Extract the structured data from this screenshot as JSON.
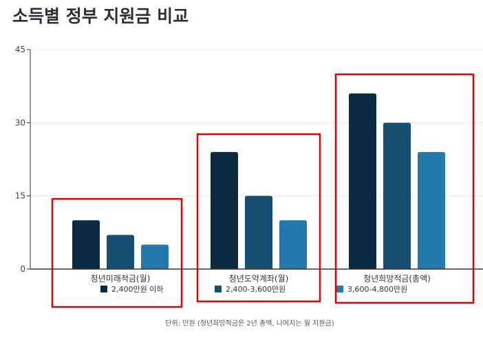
{
  "chart_data": {
    "type": "bar",
    "title": "소득별 정부 지원금 비교",
    "categories": [
      "청년미래적금(월)",
      "청년도약계좌(월)",
      "청년희망적금(총액)"
    ],
    "series": [
      {
        "name": "2,400만원 이하",
        "color": "#0e2a40",
        "values": [
          10,
          24,
          36
        ]
      },
      {
        "name": "2,400-3,600만원",
        "color": "#174f72",
        "values": [
          7,
          15,
          30
        ]
      },
      {
        "name": "3,600-4,800만원",
        "color": "#2378ac",
        "values": [
          5,
          10,
          24
        ]
      }
    ],
    "ylim": [
      0,
      45
    ],
    "yticks": [
      0,
      15,
      30,
      45
    ],
    "grid": true,
    "legend": "bottom",
    "highlight_color": "#e00000",
    "footnote": "단위: 만원 (청년희망적금은 2년 총액, 나머지는 월 지원금)"
  }
}
